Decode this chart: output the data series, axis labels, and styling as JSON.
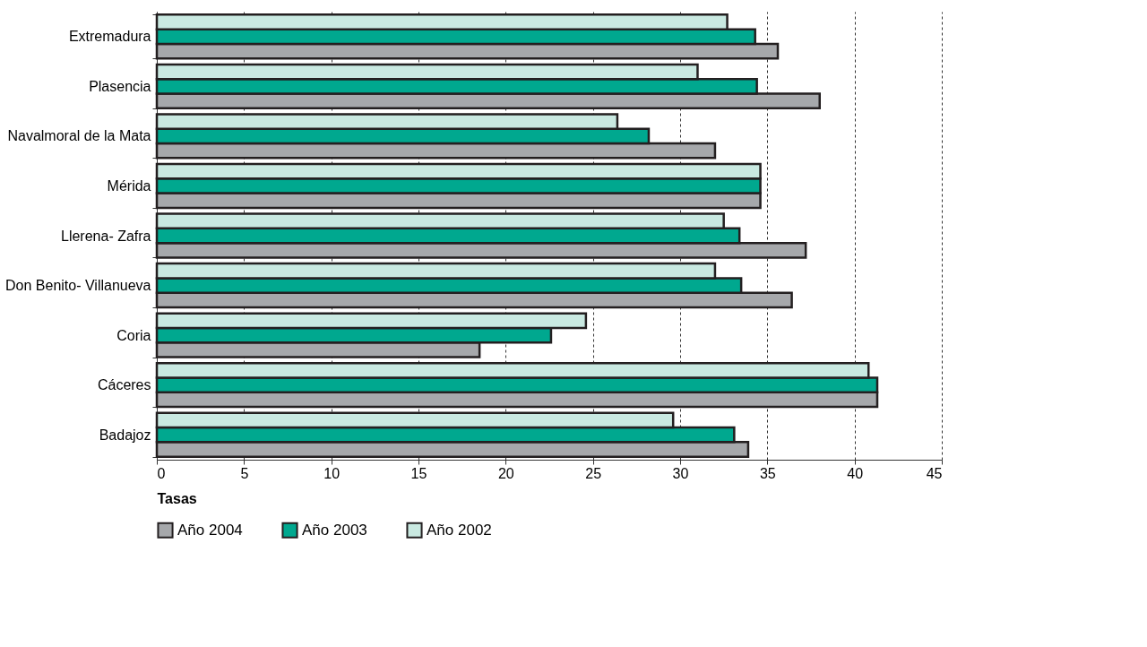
{
  "chart_data": {
    "type": "bar",
    "orientation": "horizontal",
    "xlabel": "Tasas",
    "categories": [
      "Extremadura",
      "Plasencia",
      "Navalmoral de la Mata",
      "Mérida",
      "Llerena- Zafra",
      "Don Benito- Villanueva",
      "Coria",
      "Cáceres",
      "Badajoz"
    ],
    "series": [
      {
        "name": "Año 2004",
        "color": "#a6a8ab",
        "values": [
          35.6,
          38.0,
          32.0,
          34.6,
          37.2,
          36.4,
          18.5,
          41.3,
          33.9
        ]
      },
      {
        "name": "Año 2003",
        "color": "#00a88f",
        "values": [
          34.3,
          34.4,
          28.2,
          34.6,
          33.4,
          33.5,
          22.6,
          41.3,
          33.1
        ]
      },
      {
        "name": "Año 2002",
        "color": "#c9e9e1",
        "values": [
          32.7,
          31.0,
          26.4,
          34.6,
          32.5,
          32.0,
          24.6,
          40.8,
          29.6
        ]
      }
    ],
    "xlim": [
      0,
      45
    ],
    "xticks": [
      0,
      5,
      10,
      15,
      20,
      25,
      30,
      35,
      40,
      45
    ],
    "grid": "x",
    "legend": "bottom"
  }
}
